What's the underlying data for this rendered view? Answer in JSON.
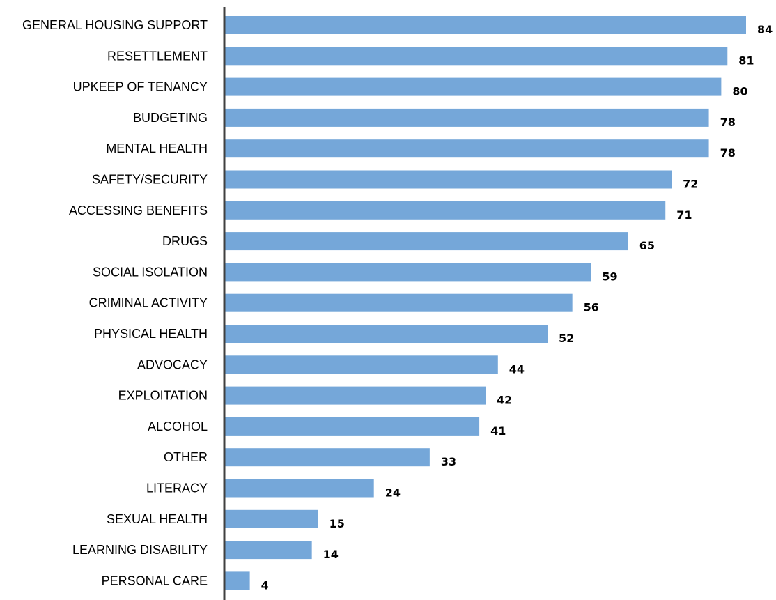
{
  "chart_data": {
    "type": "bar",
    "orientation": "horizontal",
    "categories": [
      "GENERAL HOUSING SUPPORT",
      "RESETTLEMENT",
      "UPKEEP OF TENANCY",
      "BUDGETING",
      "MENTAL HEALTH",
      "SAFETY/SECURITY",
      "ACCESSING BENEFITS",
      "DRUGS",
      "SOCIAL ISOLATION",
      "CRIMINAL ACTIVITY",
      "PHYSICAL HEALTH",
      "ADVOCACY",
      "EXPLOITATION",
      "ALCOHOL",
      "OTHER",
      "LITERACY",
      "SEXUAL HEALTH",
      "LEARNING DISABILITY",
      "PERSONAL CARE"
    ],
    "values": [
      84,
      81,
      80,
      78,
      78,
      72,
      71,
      65,
      59,
      56,
      52,
      44,
      42,
      41,
      33,
      24,
      15,
      14,
      4
    ],
    "title": "",
    "xlabel": "",
    "ylabel": "",
    "xlim": [
      0,
      84
    ],
    "grid": false,
    "legend": "none",
    "bar_color": "#75a7d9",
    "axis_color": "#404040",
    "label_color": "#000000"
  }
}
